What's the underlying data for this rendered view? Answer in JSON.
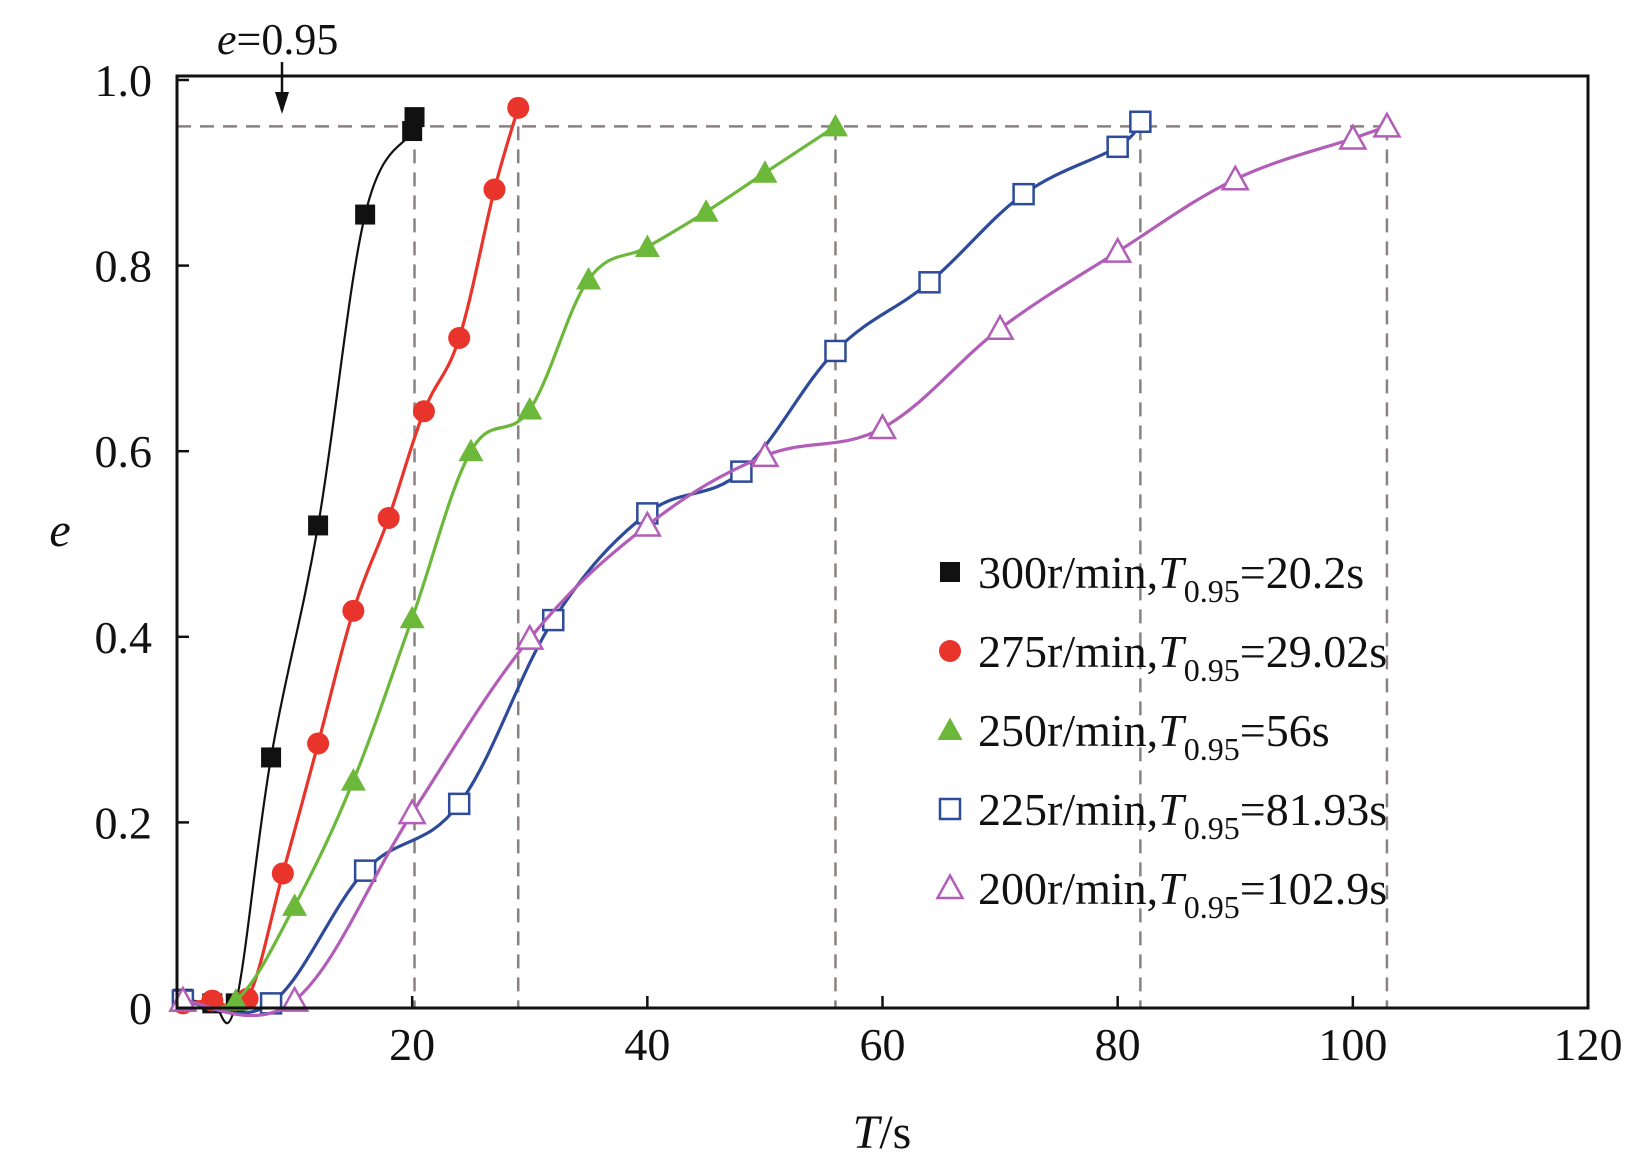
{
  "chart_data": {
    "type": "line",
    "title": "",
    "xlabel_var": "T",
    "xlabel_unit": "/s",
    "ylabel": "e",
    "xlim": [
      0,
      120
    ],
    "ylim": [
      0,
      1.0
    ],
    "x_ticks": [
      "20",
      "40",
      "60",
      "80",
      "100",
      "120"
    ],
    "y_ticks": [
      "0",
      "0.2",
      "0.4",
      "0.6",
      "0.8",
      "1.0"
    ],
    "threshold": {
      "value": 0.95,
      "label_var": "e",
      "label_value": "=0.95"
    },
    "legend_sub_var": "T",
    "legend_subscript": "0.95",
    "series": [
      {
        "name": "300r/min",
        "t95": "=20.2s",
        "t95_value": 20.2,
        "color": "#111111",
        "marker": "square-filled",
        "points": [
          [
            0.5,
            0.01
          ],
          [
            3,
            0.005
          ],
          [
            5,
            0.005
          ],
          [
            8,
            0.27
          ],
          [
            12,
            0.52
          ],
          [
            16,
            0.855
          ],
          [
            20,
            0.945
          ],
          [
            20.2,
            0.96
          ]
        ]
      },
      {
        "name": "275r/min",
        "t95": "=29.02s",
        "t95_value": 29.02,
        "color": "#e8342a",
        "marker": "circle-filled",
        "points": [
          [
            0.5,
            0.005
          ],
          [
            3,
            0.008
          ],
          [
            6,
            0.01
          ],
          [
            9,
            0.145
          ],
          [
            12,
            0.285
          ],
          [
            15,
            0.428
          ],
          [
            18,
            0.528
          ],
          [
            21,
            0.643
          ],
          [
            24,
            0.722
          ],
          [
            27,
            0.882
          ],
          [
            29.02,
            0.97
          ]
        ]
      },
      {
        "name": "250r/min",
        "t95": "=56s",
        "t95_value": 56,
        "color": "#6cb83a",
        "marker": "triangle-filled",
        "points": [
          [
            0.5,
            0.008
          ],
          [
            5,
            0.008
          ],
          [
            10,
            0.11
          ],
          [
            15,
            0.245
          ],
          [
            20,
            0.42
          ],
          [
            25,
            0.6
          ],
          [
            30,
            0.645
          ],
          [
            35,
            0.785
          ],
          [
            40,
            0.82
          ],
          [
            45,
            0.858
          ],
          [
            50,
            0.9
          ],
          [
            56,
            0.95
          ]
        ]
      },
      {
        "name": "225r/min",
        "t95": "=81.93s",
        "t95_value": 81.93,
        "color": "#2e4a9a",
        "marker": "square-open",
        "points": [
          [
            0.5,
            0.008
          ],
          [
            8,
            0.005
          ],
          [
            16,
            0.148
          ],
          [
            24,
            0.22
          ],
          [
            32,
            0.418
          ],
          [
            40,
            0.533
          ],
          [
            48,
            0.578
          ],
          [
            56,
            0.708
          ],
          [
            64,
            0.782
          ],
          [
            72,
            0.877
          ],
          [
            80,
            0.928
          ],
          [
            81.93,
            0.955
          ]
        ]
      },
      {
        "name": "200r/min",
        "t95": "=102.9s",
        "t95_value": 102.9,
        "color": "#b25db8",
        "marker": "triangle-open",
        "points": [
          [
            0.5,
            0.008
          ],
          [
            10,
            0.008
          ],
          [
            20,
            0.21
          ],
          [
            30,
            0.398
          ],
          [
            40,
            0.52
          ],
          [
            50,
            0.595
          ],
          [
            60,
            0.625
          ],
          [
            70,
            0.732
          ],
          [
            80,
            0.815
          ],
          [
            90,
            0.893
          ],
          [
            100,
            0.937
          ],
          [
            102.9,
            0.95
          ]
        ]
      }
    ]
  }
}
